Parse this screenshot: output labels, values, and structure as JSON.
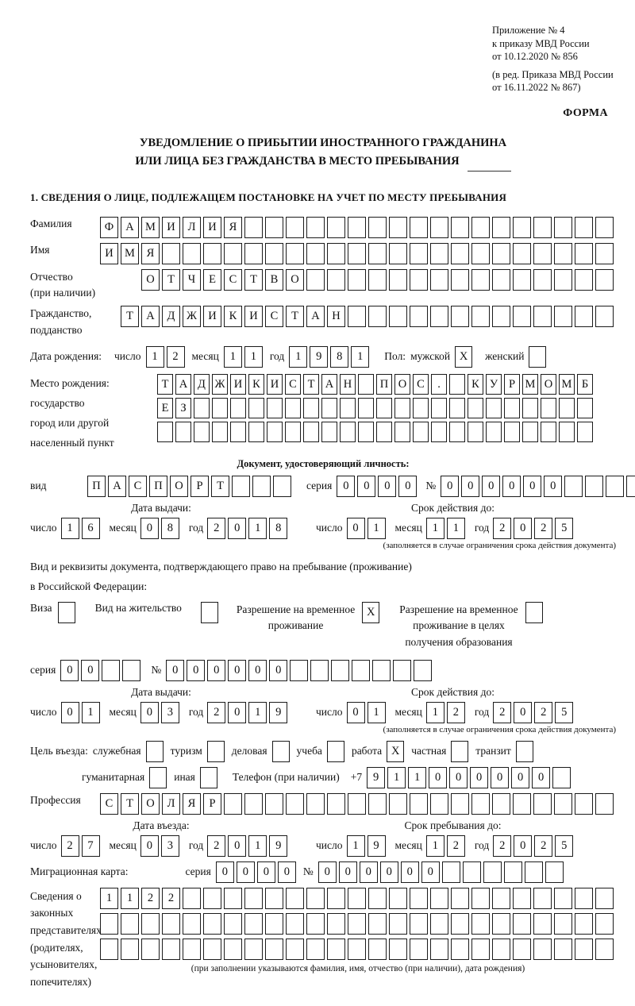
{
  "doc": {
    "appendix": [
      "Приложение № 4",
      "к приказу МВД России",
      "от 10.12.2020 № 856"
    ],
    "amendment": [
      "(в ред. Приказа МВД России",
      "от 16.11.2022 № 867)"
    ],
    "forma": "ФОРМА",
    "title1": "УВЕДОМЛЕНИЕ О ПРИБЫТИИ ИНОСТРАННОГО ГРАЖДАНИНА",
    "title2": "ИЛИ ЛИЦА БЕЗ ГРАЖДАНСТВА В МЕСТО ПРЕБЫВАНИЯ",
    "section1": "1. СВЕДЕНИЯ О ЛИЦЕ, ПОДЛЕЖАЩЕМ ПОСТАНОВКЕ НА УЧЕТ ПО МЕСТУ ПРЕБЫВАНИЯ"
  },
  "labels": {
    "day": "число",
    "month": "месяц",
    "year": "год",
    "seriya": "серия",
    "no": "№",
    "vid": "вид",
    "sex": "Пол:",
    "male": "мужской",
    "female": "женский",
    "phone": "Телефон (при наличии)",
    "phone_prefix": "+7"
  },
  "surname": {
    "label": "Фамилия",
    "n": 25,
    "v": "ФАМИЛИЯ"
  },
  "firstname": {
    "label": "Имя",
    "n": 25,
    "v": "ИМЯ"
  },
  "patronymic": {
    "label1": "Отчество",
    "label2": "(при наличии)",
    "n": 23,
    "v": "ОТЧЕСТВО"
  },
  "citizenship": {
    "label1": "Гражданство,",
    "label2": "подданство",
    "n": 24,
    "v": "ТАДЖИКИСТАН"
  },
  "birth": {
    "label": "Дата рождения:",
    "day": {
      "n": 2,
      "v": "12"
    },
    "month": {
      "n": 2,
      "v": "11"
    },
    "year": {
      "n": 4,
      "v": "1981"
    },
    "male_mark": "X",
    "female_mark": ""
  },
  "birth_place": {
    "label1": "Место рождения:",
    "label2": "государство",
    "label3": "город или другой",
    "label4": "населенный пункт",
    "r1": {
      "n": 24,
      "v": "ТАДЖИКИСТАН ПОС. КУРМОМБ"
    },
    "r2": {
      "n": 24,
      "v": "ЕЗ"
    },
    "r3": {
      "n": 24,
      "v": ""
    }
  },
  "identity_doc": {
    "heading": "Документ, удостоверяющий личность:",
    "vid": {
      "n": 10,
      "v": "ПАСПОРТ"
    },
    "seriya": {
      "n": 4,
      "v": "0000"
    },
    "number": {
      "n": 11,
      "v": "000000"
    },
    "issue": {
      "head": "Дата выдачи:",
      "day": {
        "n": 2,
        "v": "16"
      },
      "month": {
        "n": 2,
        "v": "08"
      },
      "year": {
        "n": 4,
        "v": "2018"
      }
    },
    "expiry": {
      "head": "Срок действия до:",
      "day": {
        "n": 2,
        "v": "01"
      },
      "month": {
        "n": 2,
        "v": "11"
      },
      "year": {
        "n": 4,
        "v": "2025"
      }
    },
    "note": "(заполняется в случае ограничения срока действия документа)"
  },
  "residence_doc": {
    "intro1": "Вид и реквизиты документа, подтверждающего право на пребывание (проживание)",
    "intro2": "в Российской Федерации:",
    "visa_label": "Виза",
    "visa_mark": "",
    "residence_permit_label": "Вид на жительство",
    "residence_permit_mark": "",
    "temp_permit_label1": "Разрешение на временное",
    "temp_permit_label2": "проживание",
    "temp_permit_mark": "X",
    "edu_permit_label1": "Разрешение на временное",
    "edu_permit_label2": "проживание в целях",
    "edu_permit_label3": "получения образования",
    "edu_permit_mark": "",
    "seriya": {
      "n": 4,
      "v": "00"
    },
    "number": {
      "n": 13,
      "v": "000000"
    },
    "issue": {
      "head": "Дата выдачи:",
      "day": {
        "n": 2,
        "v": "01"
      },
      "month": {
        "n": 2,
        "v": "03"
      },
      "year": {
        "n": 4,
        "v": "2019"
      }
    },
    "expiry": {
      "head": "Срок действия до:",
      "day": {
        "n": 2,
        "v": "01"
      },
      "month": {
        "n": 2,
        "v": "12"
      },
      "year": {
        "n": 4,
        "v": "2025"
      }
    },
    "note": "(заполняется в случае ограничения срока действия документа)"
  },
  "purpose": {
    "label": "Цель въезда:",
    "items1": [
      {
        "label": "служебная",
        "mark": ""
      },
      {
        "label": "туризм",
        "mark": ""
      },
      {
        "label": "деловая",
        "mark": ""
      },
      {
        "label": "учеба",
        "mark": ""
      },
      {
        "label": "работа",
        "mark": "X"
      },
      {
        "label": "частная",
        "mark": ""
      },
      {
        "label": "транзит",
        "mark": ""
      }
    ],
    "items2": [
      {
        "label": "гуманитарная",
        "mark": ""
      },
      {
        "label": "иная",
        "mark": ""
      }
    ],
    "phone": {
      "n": 10,
      "v": "911000000"
    }
  },
  "profession": {
    "label": "Профессия",
    "n": 25,
    "v": "СТОЛЯР"
  },
  "entry": {
    "issue": {
      "head": "Дата въезда:",
      "day": {
        "n": 2,
        "v": "27"
      },
      "month": {
        "n": 2,
        "v": "03"
      },
      "year": {
        "n": 4,
        "v": "2019"
      }
    },
    "expiry": {
      "head": "Срок пребывания до:",
      "day": {
        "n": 2,
        "v": "19"
      },
      "month": {
        "n": 2,
        "v": "12"
      },
      "year": {
        "n": 4,
        "v": "2025"
      }
    }
  },
  "migration_card": {
    "label": "Миграционная карта:",
    "seriya": {
      "n": 4,
      "v": "0000"
    },
    "number": {
      "n": 12,
      "v": "000000"
    }
  },
  "representatives": {
    "l1": "Сведения о",
    "l2": "законных",
    "l3": "представителях",
    "l4": "(родителях,",
    "l5": "усыновителях,",
    "l6": "попечителях)",
    "r1": {
      "n": 25,
      "v": "1122"
    },
    "r2": {
      "n": 25,
      "v": ""
    },
    "r3": {
      "n": 25,
      "v": ""
    },
    "note": "(при заполнении указываются фамилия, имя, отчество (при наличии), дата рождения)"
  }
}
